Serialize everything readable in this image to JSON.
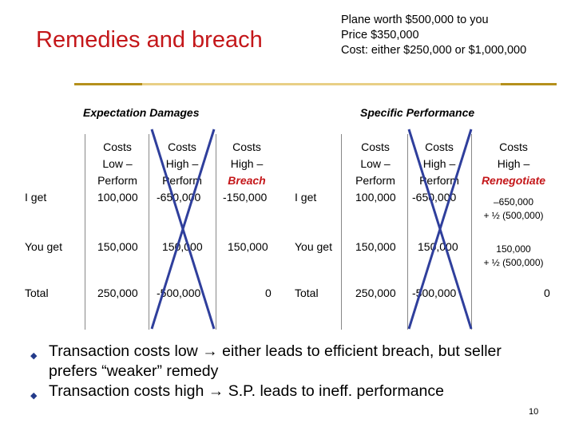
{
  "title": "Remedies and breach",
  "note": {
    "line1": "Plane worth $500,000 to you",
    "line2": "Price $350,000",
    "line3": "Cost: either $250,000 or $1,000,000"
  },
  "left_table": {
    "section": "Expectation Damages",
    "headers": [
      {
        "l1": "Costs",
        "l2": "Low –",
        "l3": "Perform"
      },
      {
        "l1": "Costs",
        "l2": "High –",
        "l3": "Perform"
      },
      {
        "l1": "Costs",
        "l2": "High –",
        "l3": "Breach"
      }
    ],
    "rows": [
      {
        "label": "I get",
        "values": [
          "100,000",
          "-650,000",
          "-150,000"
        ]
      },
      {
        "label": "You get",
        "values": [
          "150,000",
          "150,000",
          "150,000"
        ]
      },
      {
        "label": "Total",
        "values": [
          "250,000",
          "-500,000",
          "0"
        ]
      }
    ]
  },
  "right_table": {
    "section": "Specific Performance",
    "headers": [
      {
        "l1": "Costs",
        "l2": "Low –",
        "l3": "Perform"
      },
      {
        "l1": "Costs",
        "l2": "High –",
        "l3": "Perform"
      },
      {
        "l1": "Costs",
        "l2": "High –",
        "l3": "Renegotiate"
      }
    ],
    "rows": [
      {
        "label": "I get",
        "values": [
          "100,000",
          "-650,000"
        ],
        "extra1": "–650,000",
        "extra2": "+ ½ (500,000)"
      },
      {
        "label": "You get",
        "values": [
          "150,000",
          "150,000"
        ],
        "extra1": "150,000",
        "extra2": "+ ½ (500,000)"
      },
      {
        "label": "Total",
        "values": [
          "250,000",
          "-500,000"
        ],
        "extra1": "0"
      }
    ]
  },
  "bullets": [
    {
      "a": "Transaction costs low ",
      "arrow": "→",
      "b": " either leads to efficient breach, but seller",
      "c": "prefers “weaker” remedy"
    },
    {
      "a": "Transaction costs high ",
      "arrow": "→",
      "b": " S.P. leads to ineff. performance"
    }
  ],
  "page_number": "10",
  "colors": {
    "title": "#c4171a",
    "cross": "#2f3f9c",
    "rule": "#b5901c",
    "bullet": "#233a8a"
  }
}
